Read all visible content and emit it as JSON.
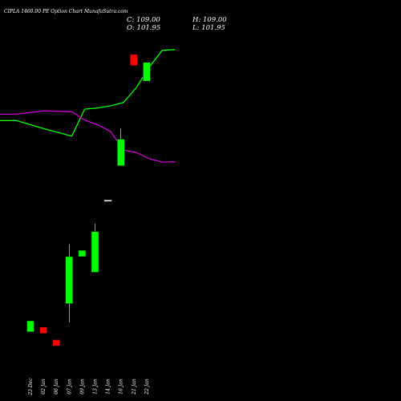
{
  "title": "CIPLA 1460.00 PE Option  Chart MunafaSutra.com",
  "ohlc": {
    "open_label": "O: 101.95",
    "high_label": "H: 109.00",
    "low_label": "L: 101.95",
    "close_label": "C: 109.00"
  },
  "colors": {
    "background": "#000000",
    "bullish": "#00ff00",
    "bearish": "#ff0000",
    "neutral": "#ffffff",
    "line_green": "#00ff00",
    "line_magenta": "#cc00cc"
  },
  "chart_data": {
    "type": "candlestick",
    "categories": [
      "23 Dec",
      "02 Jan",
      "06 Jan",
      "07 Jan",
      "09 Jan",
      "13 Jan",
      "14 Jan",
      "16 Jan",
      "21 Jan",
      "22 Jan"
    ],
    "candles": [
      {
        "open": 11,
        "high": 18,
        "low": 11,
        "close": 18,
        "color": "bullish"
      },
      {
        "open": 14,
        "high": 14,
        "low": 10,
        "close": 10,
        "color": "bearish"
      },
      {
        "open": 6,
        "high": 6,
        "low": 2,
        "close": 2,
        "color": "bearish"
      },
      {
        "open": 29,
        "high": 67,
        "low": 17,
        "close": 59,
        "color": "bullish"
      },
      {
        "open": 59,
        "high": 63,
        "low": 59,
        "close": 63,
        "color": "bullish"
      },
      {
        "open": 49,
        "high": 80,
        "low": 49,
        "close": 75,
        "color": "bullish"
      },
      {
        "open": 95,
        "high": 95,
        "low": 95,
        "close": 95,
        "color": "neutral"
      },
      {
        "open": 117,
        "high": 141,
        "low": 117,
        "close": 134,
        "color": "bullish"
      },
      {
        "open": 188,
        "high": 188,
        "low": 181,
        "close": 181,
        "color": "bearish"
      },
      {
        "open": 171,
        "high": 183,
        "low": 171,
        "close": 183,
        "color": "bullish"
      }
    ],
    "ylim": [
      -5,
      210
    ],
    "lines": [
      {
        "color": "line_green",
        "points": [
          [
            -3.1,
            57.9
          ],
          [
            -1.1,
            57.9
          ],
          [
            1.1,
            55.9
          ],
          [
            3.2,
            54.2
          ],
          [
            4.2,
            60.6
          ],
          [
            5.2,
            60.9
          ],
          [
            6.2,
            61.4
          ],
          [
            7.2,
            62.2
          ],
          [
            8.2,
            65.7
          ],
          [
            9.2,
            70.6
          ],
          [
            10.2,
            74.6
          ],
          [
            11.2,
            74.8
          ]
        ]
      },
      {
        "color": "line_magenta",
        "points": [
          [
            -3.1,
            59.4
          ],
          [
            -1.1,
            59.4
          ],
          [
            1.1,
            60.2
          ],
          [
            3.2,
            60.0
          ],
          [
            4.2,
            58.0
          ],
          [
            5.2,
            56.9
          ],
          [
            6.2,
            55.3
          ],
          [
            7.2,
            50.9
          ],
          [
            8.2,
            50.3
          ],
          [
            9.2,
            48.8
          ],
          [
            10.2,
            48.0
          ],
          [
            11.2,
            48.1
          ]
        ]
      }
    ],
    "lines_ylim": [
      36,
      78
    ]
  }
}
